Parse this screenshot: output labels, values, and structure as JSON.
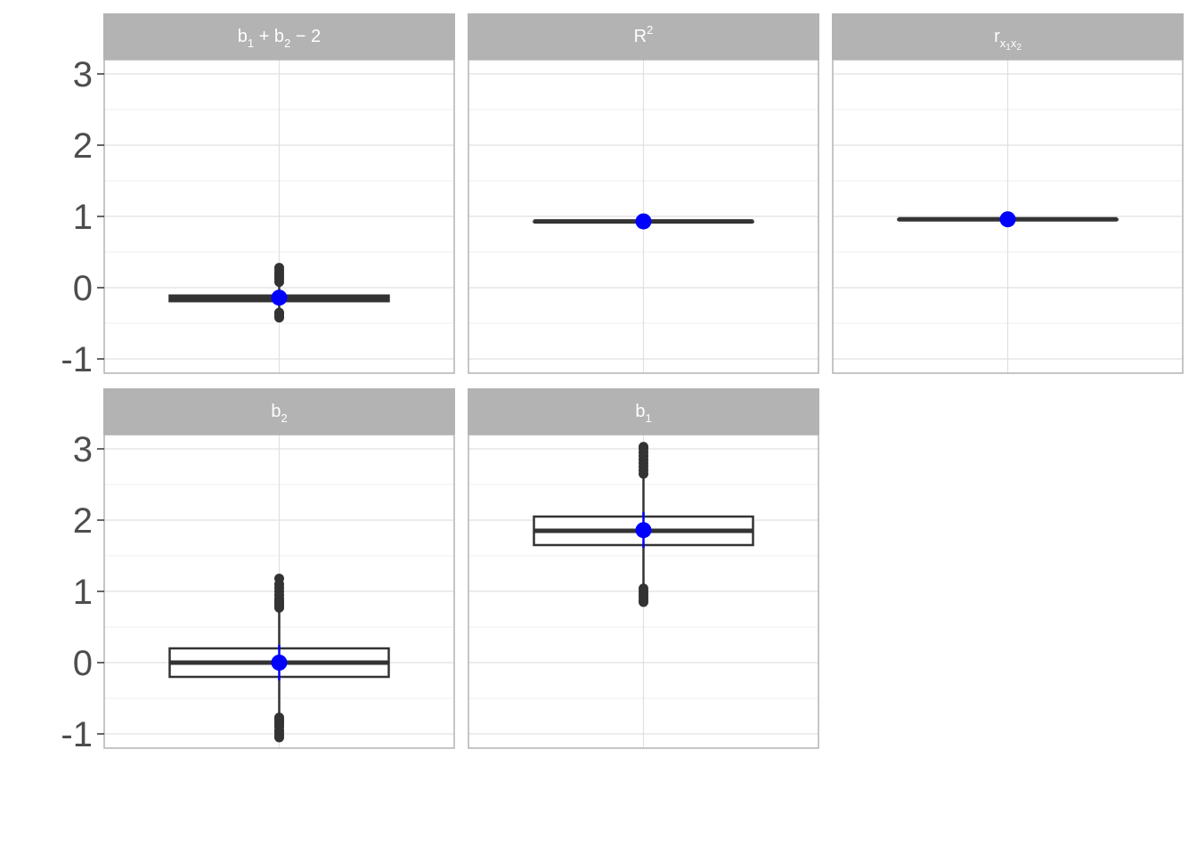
{
  "chart_data": {
    "type": "boxplot",
    "facet_layout": "3 columns x 2 rows",
    "ylim": [
      -1.2,
      3.2
    ],
    "y_ticks": [
      -1,
      0,
      1,
      2,
      3
    ],
    "y_tick_labels": [
      "-1",
      "0",
      "1",
      "2",
      "3"
    ],
    "grid": true,
    "colors": {
      "strip_background": "#b3b3b3",
      "box_line": "#333333",
      "mean_point": "#0000ff",
      "grid": "#e0e0e0",
      "panel_border": "#b3b3b3"
    },
    "panels": [
      {
        "label": "b1 + b2 − 2",
        "strip": {
          "parts": [
            {
              "t": "b",
              "s": "n"
            },
            {
              "t": "1",
              "s": "sub"
            },
            {
              "t": " + b",
              "s": "n"
            },
            {
              "t": "2",
              "s": "sub"
            },
            {
              "t": " − 2",
              "s": "n"
            }
          ]
        },
        "q1": -0.19,
        "median": -0.15,
        "q3": -0.11,
        "whisker_low": -0.3,
        "whisker_high": 0.05,
        "outliers": [
          -0.42,
          -0.4,
          -0.37,
          -0.35,
          0.08,
          0.12,
          0.16,
          0.2,
          0.24,
          0.28
        ],
        "mean": -0.14,
        "mean_se": 0.02
      },
      {
        "label": "R2",
        "strip": {
          "parts": [
            {
              "t": "R",
              "s": "n"
            },
            {
              "t": "2",
              "s": "sup"
            }
          ]
        },
        "q1": 0.93,
        "median": 0.93,
        "q3": 0.93,
        "whisker_low": 0.93,
        "whisker_high": 0.93,
        "outliers": [
          0.9,
          0.91,
          0.94,
          0.95
        ],
        "mean": 0.93,
        "mean_se": 0.0
      },
      {
        "label": "rx1x2",
        "strip": {
          "parts": [
            {
              "t": "r",
              "s": "n"
            },
            {
              "t": "x",
              "s": "sub"
            },
            {
              "t": "1",
              "s": "subsub"
            },
            {
              "t": "x",
              "s": "sub"
            },
            {
              "t": "2",
              "s": "subsub"
            }
          ]
        },
        "q1": 0.96,
        "median": 0.96,
        "q3": 0.96,
        "whisker_low": 0.96,
        "whisker_high": 0.96,
        "outliers": [
          0.95,
          0.97,
          0.98
        ],
        "mean": 0.96,
        "mean_se": 0.0
      },
      {
        "label": "b2",
        "strip": {
          "parts": [
            {
              "t": "b",
              "s": "n"
            },
            {
              "t": "2",
              "s": "sub"
            }
          ]
        },
        "q1": -0.2,
        "median": 0.0,
        "q3": 0.2,
        "whisker_low": -0.73,
        "whisker_high": 0.73,
        "outliers": [
          -1.05,
          -1.02,
          -0.98,
          -0.95,
          -0.9,
          -0.86,
          -0.83,
          -0.8,
          -0.77,
          0.77,
          0.8,
          0.83,
          0.86,
          0.9,
          0.95,
          1.0,
          1.05,
          1.1,
          1.18
        ],
        "mean": 0.0,
        "mean_se": 0.25
      },
      {
        "label": "b1",
        "strip": {
          "parts": [
            {
              "t": "b",
              "s": "n"
            },
            {
              "t": "1",
              "s": "sub"
            }
          ]
        },
        "q1": 1.65,
        "median": 1.85,
        "q3": 2.05,
        "whisker_low": 1.1,
        "whisker_high": 2.6,
        "outliers": [
          0.85,
          0.88,
          0.92,
          0.96,
          1.0,
          1.04,
          2.65,
          2.7,
          2.75,
          2.8,
          2.85,
          2.9,
          2.95,
          3.0,
          3.03
        ],
        "mean": 1.86,
        "mean_se": 0.25
      }
    ]
  }
}
